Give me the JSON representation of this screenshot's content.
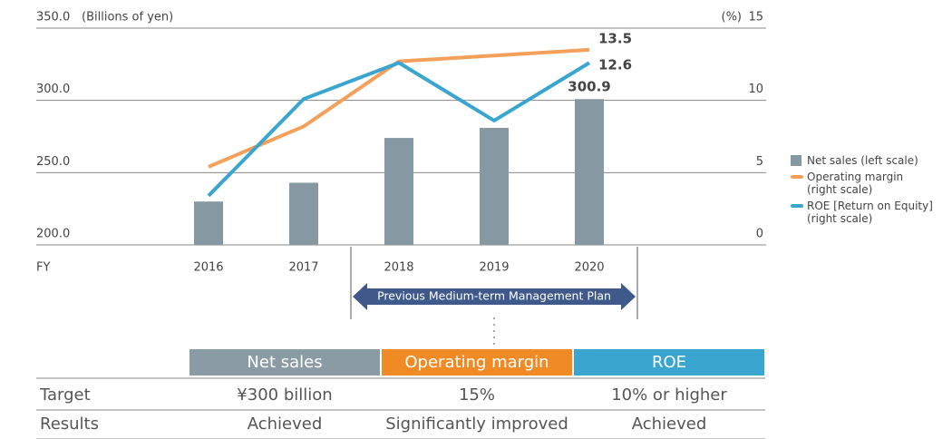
{
  "chart_data": {
    "type": "bar",
    "ylabel": "(Billions of yen)",
    "y2label": "(%)",
    "xlabel": "FY",
    "categories": [
      "2016",
      "2017",
      "2018",
      "2019",
      "2020"
    ],
    "series": [
      {
        "name": "Net sales (left scale)",
        "type": "bar",
        "color": "#8698a2",
        "values": [
          230,
          243,
          274,
          281,
          300.9
        ],
        "value_labels": [
          null,
          null,
          null,
          null,
          "300.9"
        ]
      },
      {
        "name": "Operating margin (right scale)",
        "type": "line",
        "axis": "y2",
        "color": "#f5a05a",
        "values": [
          5.4,
          8.2,
          12.7,
          13.1,
          13.5
        ],
        "value_labels": [
          null,
          null,
          null,
          null,
          "13.5"
        ]
      },
      {
        "name": "ROE [Return on Equity] (right scale)",
        "type": "line",
        "axis": "y2",
        "color": "#3aa6d0",
        "values": [
          3.4,
          10.1,
          12.6,
          8.6,
          12.6
        ],
        "value_labels": [
          null,
          null,
          null,
          null,
          "12.6"
        ]
      }
    ],
    "ylim": [
      200,
      350
    ],
    "yticks": [
      {
        "value": 200,
        "label": "200.0"
      },
      {
        "value": 250,
        "label": "250.0"
      },
      {
        "value": 300,
        "label": "300.0"
      },
      {
        "value": 350,
        "label": "350.0"
      }
    ],
    "y2lim": [
      0,
      15
    ],
    "y2ticks": [
      0,
      5,
      10,
      15
    ],
    "grid": true,
    "legend": "right"
  },
  "plan_label": "Previous Medium-term Management Plan",
  "table": {
    "columns": [
      "Net sales",
      "Operating margin",
      "ROE"
    ],
    "column_colors": [
      "#8a9ba5",
      "#f08a24",
      "#3aa6d0"
    ],
    "rows": [
      [
        "Target",
        "¥300 billion",
        "15%",
        "10% or higher"
      ],
      [
        "Results",
        "Achieved",
        "Significantly improved",
        "Achieved"
      ]
    ]
  }
}
